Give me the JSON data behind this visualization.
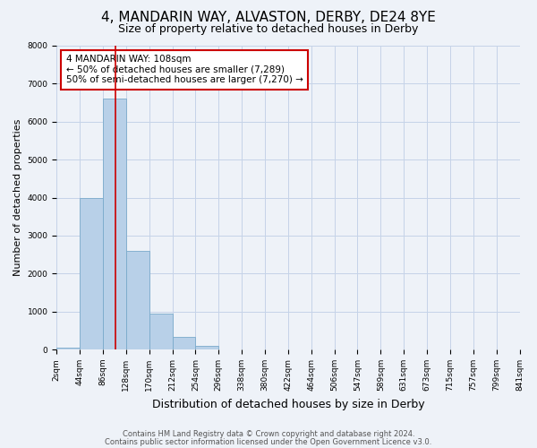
{
  "title": "4, MANDARIN WAY, ALVASTON, DERBY, DE24 8YE",
  "subtitle": "Size of property relative to detached houses in Derby",
  "xlabel": "Distribution of detached houses by size in Derby",
  "ylabel": "Number of detached properties",
  "bin_labels": [
    "2sqm",
    "44sqm",
    "86sqm",
    "128sqm",
    "170sqm",
    "212sqm",
    "254sqm",
    "296sqm",
    "338sqm",
    "380sqm",
    "422sqm",
    "464sqm",
    "506sqm",
    "547sqm",
    "589sqm",
    "631sqm",
    "673sqm",
    "715sqm",
    "757sqm",
    "799sqm",
    "841sqm"
  ],
  "bar_values": [
    50,
    4000,
    6600,
    2600,
    950,
    330,
    100,
    0,
    0,
    0,
    0,
    0,
    0,
    0,
    0,
    0,
    0,
    0,
    0,
    0
  ],
  "bar_color": "#b8d0e8",
  "bar_edge_color": "#7aaacb",
  "vline_color": "#cc0000",
  "annotation_title": "4 MANDARIN WAY: 108sqm",
  "annotation_line1": "← 50% of detached houses are smaller (7,289)",
  "annotation_line2": "50% of semi-detached houses are larger (7,270) →",
  "annotation_box_color": "#ffffff",
  "annotation_box_edge": "#cc0000",
  "ylim": [
    0,
    8000
  ],
  "footer1": "Contains HM Land Registry data © Crown copyright and database right 2024.",
  "footer2": "Contains public sector information licensed under the Open Government Licence v3.0.",
  "bg_color": "#eef2f8",
  "grid_color": "#c5d3e8",
  "title_fontsize": 11,
  "subtitle_fontsize": 9,
  "tick_fontsize": 6.5,
  "ylabel_fontsize": 8,
  "xlabel_fontsize": 9,
  "annotation_fontsize": 7.5,
  "footer_fontsize": 6
}
